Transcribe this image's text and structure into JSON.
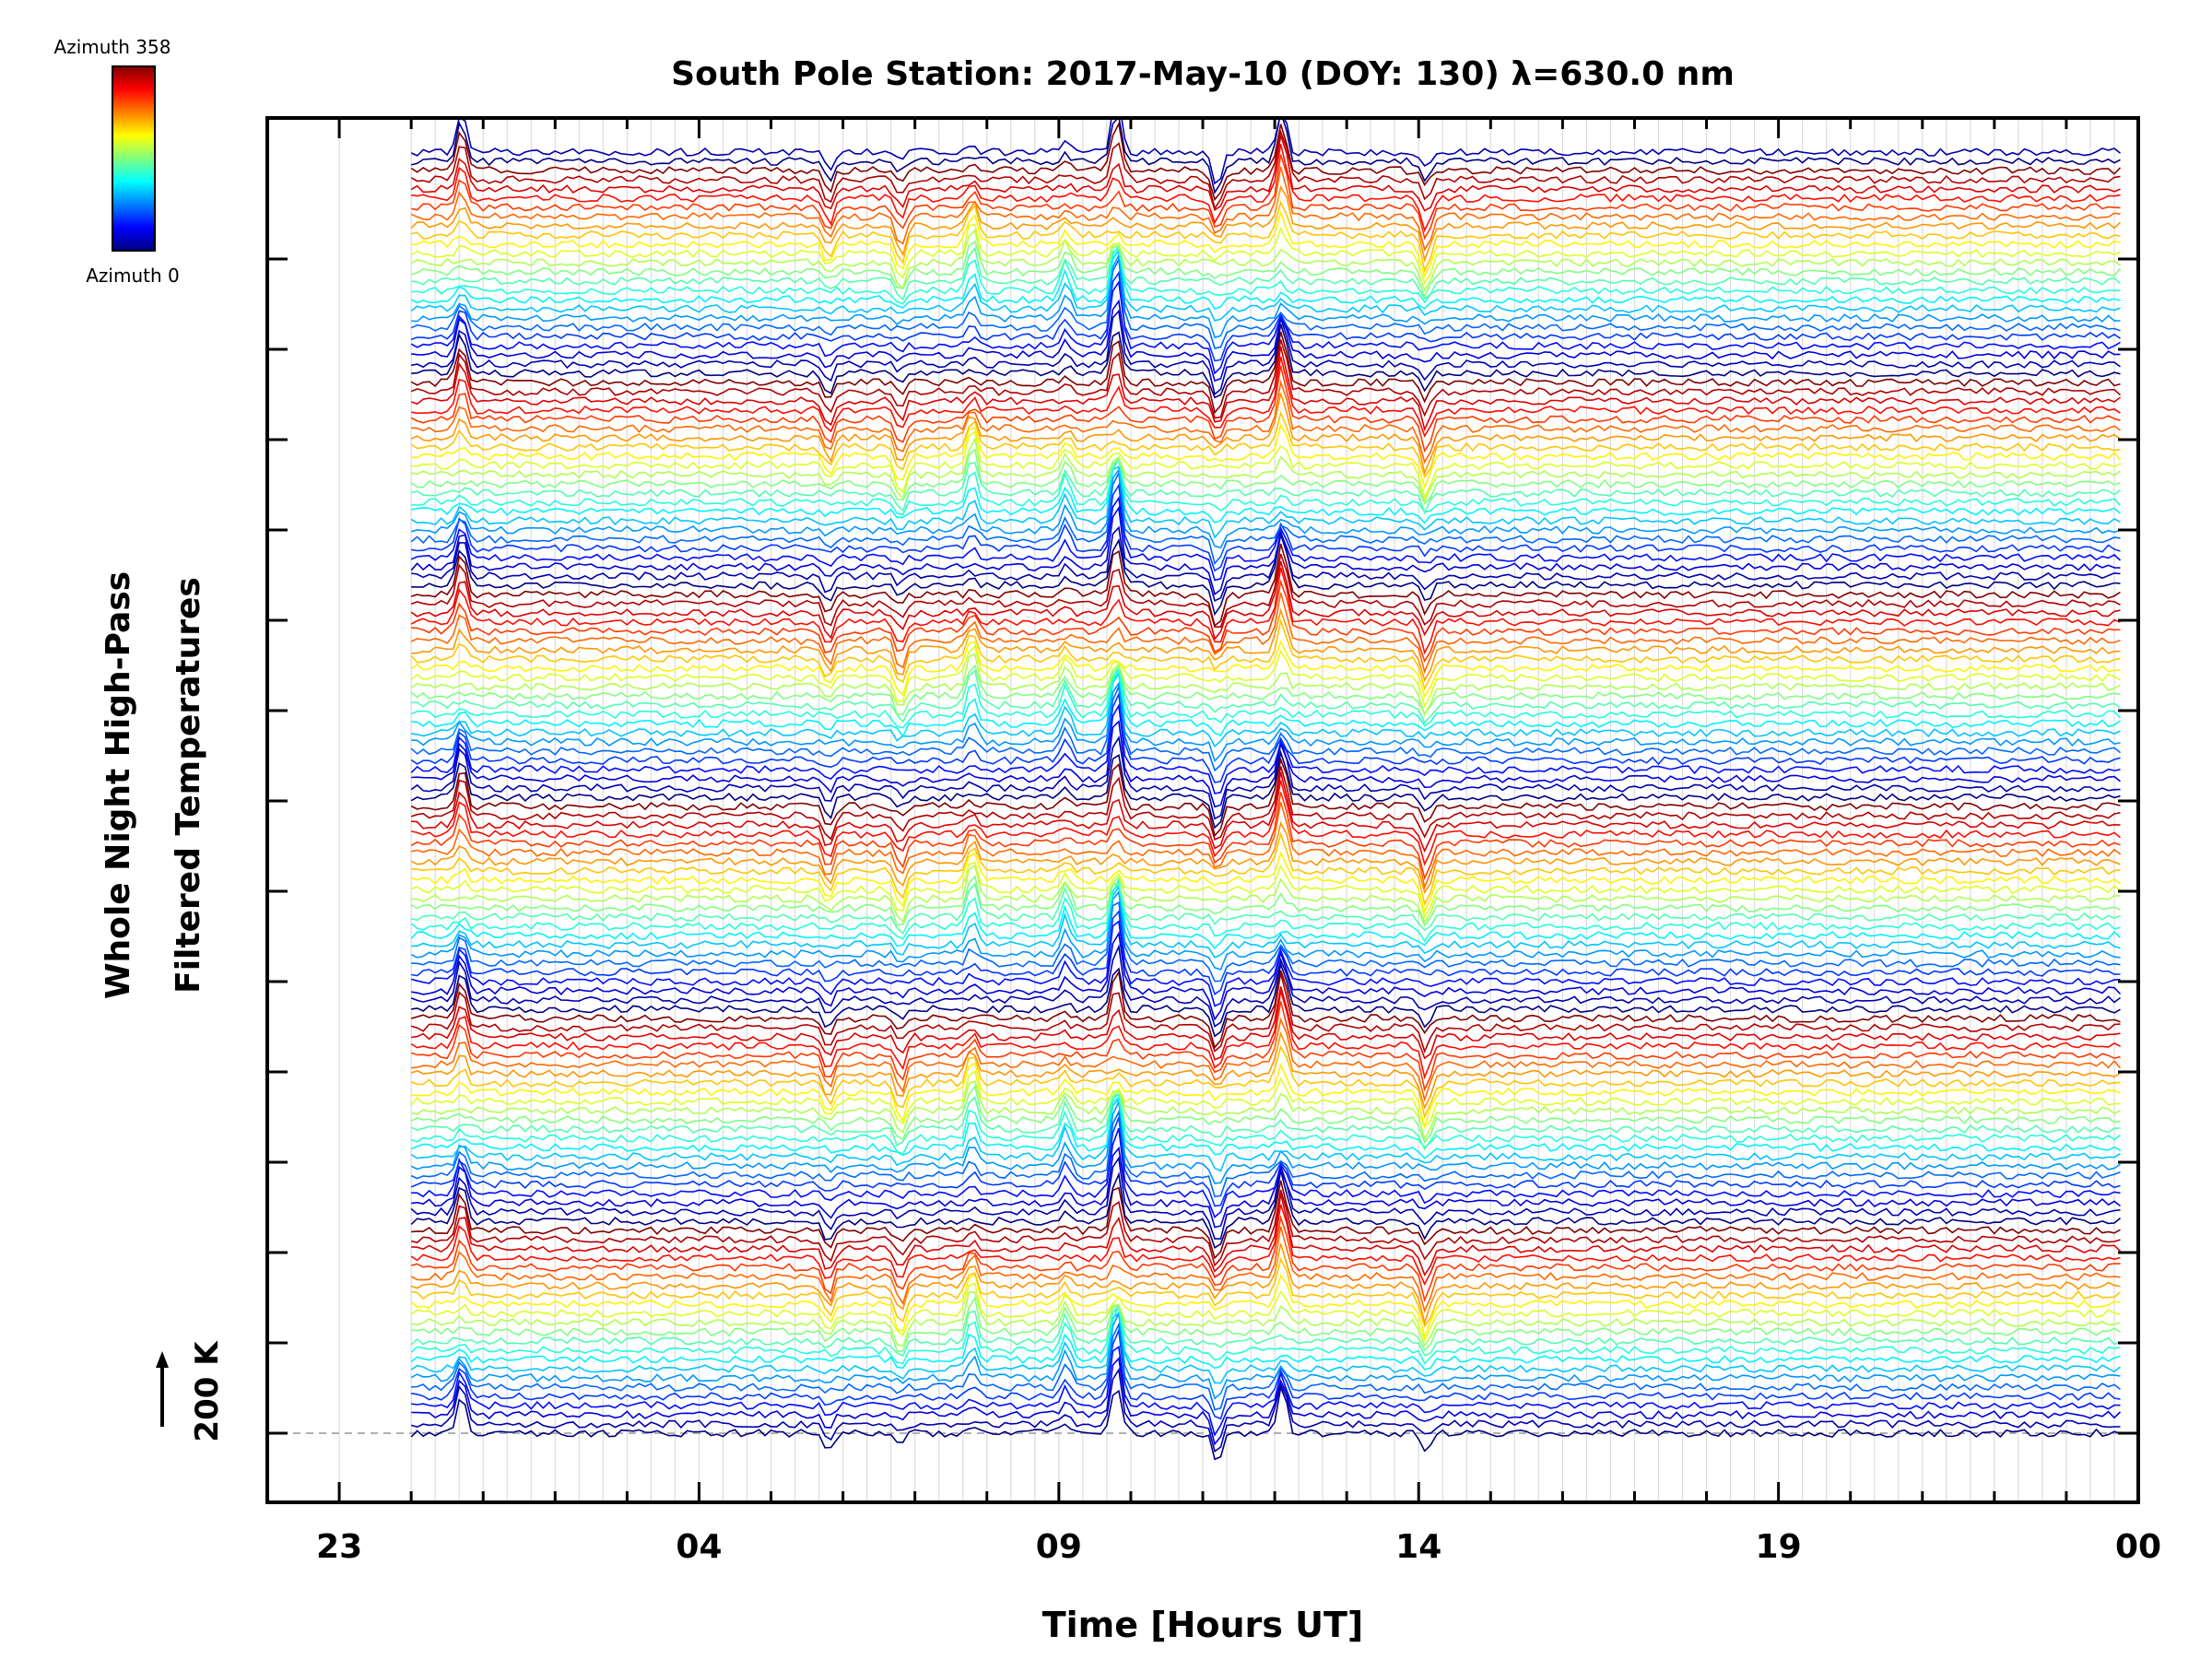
{
  "chart_data": {
    "type": "line",
    "title": "South Pole Station: 2017-May-10 (DOY: 130) λ=630.0 nm",
    "xlabel": "Time [Hours UT]",
    "ylabel_line1": "Whole Night High-Pass",
    "ylabel_line2": "Filtered Temperatures",
    "scale_label": "200 K",
    "x_ticks": [
      "23",
      "04",
      "09",
      "14",
      "19",
      "00"
    ],
    "x_tick_hours": [
      23,
      28,
      33,
      38,
      43,
      48
    ],
    "xlim_hours": [
      22,
      48
    ],
    "data_start_hour": 24,
    "data_end_hour": 47.8,
    "colorbar": {
      "top_label": "Azimuth 358",
      "bottom_label": "Azimuth 0",
      "min": 0,
      "max": 358
    },
    "series_count": 140,
    "series_groups": 6,
    "offset_per_series_K": 10,
    "noise_amplitude_K": 4,
    "event_hours": [
      24.7,
      29.8,
      30.8,
      31.8,
      33.1,
      33.8,
      35.2,
      36.1,
      38.1
    ],
    "event_amplitudes_K": [
      45,
      -28,
      -32,
      40,
      30,
      80,
      -35,
      60,
      -38
    ]
  }
}
